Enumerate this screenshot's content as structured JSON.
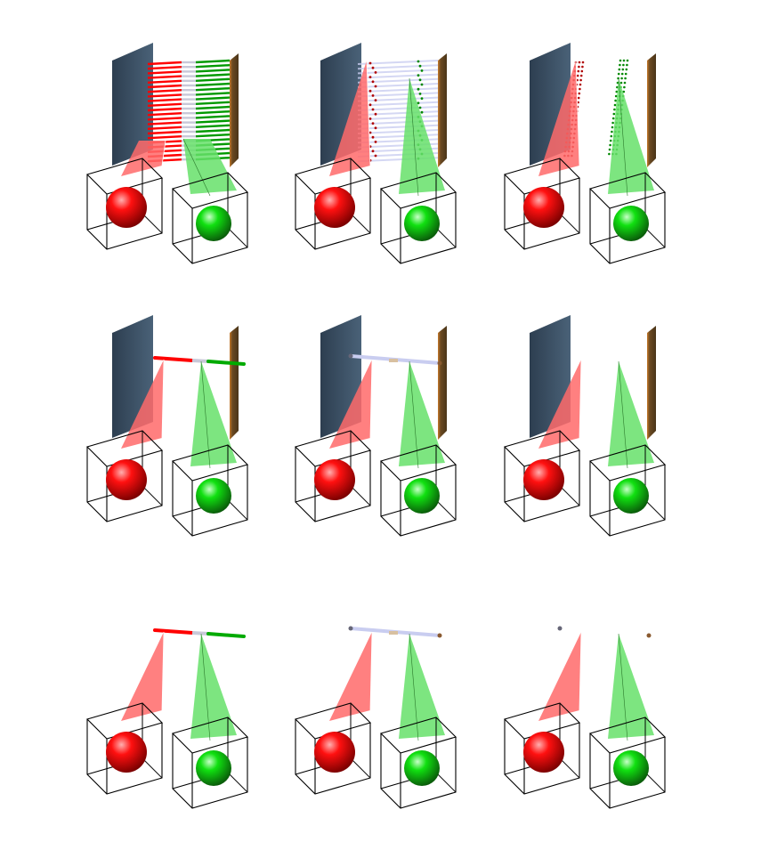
{
  "figure": {
    "columns": [
      "rods",
      "rods-translucent",
      "points"
    ],
    "rows": [
      "with-slab-stack",
      "with-single-rod",
      "rod-only"
    ],
    "colors": {
      "red": "#ff0000",
      "green": "#00dd00",
      "red_cone": "#ff6a6a",
      "green_cone": "#66e06a",
      "left_slab": "#3d5266",
      "right_slab": "#6b4a22",
      "rod_neutral": "#c8c8d8",
      "rod_pale": "#c9cdf0",
      "frame": "#000000"
    }
  }
}
